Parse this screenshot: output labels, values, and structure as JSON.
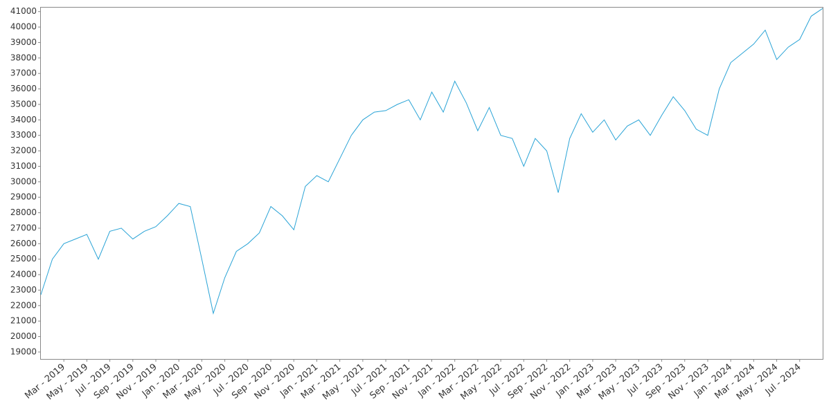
{
  "chart_data": {
    "type": "line",
    "x": [
      "2019-01",
      "2019-02",
      "2019-03",
      "2019-04",
      "2019-05",
      "2019-06",
      "2019-07",
      "2019-08",
      "2019-09",
      "2019-10",
      "2019-11",
      "2019-12",
      "2020-01",
      "2020-02",
      "2020-03",
      "2020-04",
      "2020-05",
      "2020-06",
      "2020-07",
      "2020-08",
      "2020-09",
      "2020-10",
      "2020-11",
      "2020-12",
      "2021-01",
      "2021-02",
      "2021-03",
      "2021-04",
      "2021-05",
      "2021-06",
      "2021-07",
      "2021-08",
      "2021-09",
      "2021-10",
      "2021-11",
      "2021-12",
      "2022-01",
      "2022-02",
      "2022-03",
      "2022-04",
      "2022-05",
      "2022-06",
      "2022-07",
      "2022-08",
      "2022-09",
      "2022-10",
      "2022-11",
      "2022-12",
      "2023-01",
      "2023-02",
      "2023-03",
      "2023-04",
      "2023-05",
      "2023-06",
      "2023-07",
      "2023-08",
      "2023-09",
      "2023-10",
      "2023-11",
      "2023-12",
      "2024-01",
      "2024-02",
      "2024-03",
      "2024-04",
      "2024-05",
      "2024-06",
      "2024-07",
      "2024-08",
      "2024-09"
    ],
    "series": [
      {
        "color": "#29a3d6",
        "values": [
          22700,
          25000,
          26000,
          26300,
          26600,
          25000,
          26800,
          27000,
          26300,
          26800,
          27100,
          27800,
          28600,
          28400,
          25000,
          21500,
          23800,
          25500,
          26000,
          26700,
          28400,
          27800,
          26900,
          29700,
          30400,
          30000,
          31500,
          33000,
          34000,
          34500,
          34600,
          35000,
          35300,
          34000,
          35800,
          34500,
          36500,
          35100,
          33300,
          34800,
          33000,
          32800,
          31000,
          32800,
          32000,
          29300,
          32800,
          34400,
          33200,
          34000,
          32700,
          33600,
          34000,
          33000,
          34300,
          35500,
          34600,
          33400,
          33000,
          36000,
          37700,
          38300,
          38900,
          39800,
          37900,
          38700,
          39200,
          40700,
          41200
        ]
      }
    ],
    "xlim": [
      "2019-01",
      "2024-09"
    ],
    "xticks": [
      {
        "value": "2019-03",
        "label": "Mar - 2019"
      },
      {
        "value": "2019-05",
        "label": "May - 2019"
      },
      {
        "value": "2019-07",
        "label": "Jul - 2019"
      },
      {
        "value": "2019-09",
        "label": "Sep - 2019"
      },
      {
        "value": "2019-11",
        "label": "Nov - 2019"
      },
      {
        "value": "2020-01",
        "label": "Jan - 2020"
      },
      {
        "value": "2020-03",
        "label": "Mar - 2020"
      },
      {
        "value": "2020-05",
        "label": "May - 2020"
      },
      {
        "value": "2020-07",
        "label": "Jul - 2020"
      },
      {
        "value": "2020-09",
        "label": "Sep - 2020"
      },
      {
        "value": "2020-11",
        "label": "Nov - 2020"
      },
      {
        "value": "2021-01",
        "label": "Jan - 2021"
      },
      {
        "value": "2021-03",
        "label": "Mar - 2021"
      },
      {
        "value": "2021-05",
        "label": "May - 2021"
      },
      {
        "value": "2021-07",
        "label": "Jul - 2021"
      },
      {
        "value": "2021-09",
        "label": "Sep - 2021"
      },
      {
        "value": "2021-11",
        "label": "Nov - 2021"
      },
      {
        "value": "2022-01",
        "label": "Jan - 2022"
      },
      {
        "value": "2022-03",
        "label": "Mar - 2022"
      },
      {
        "value": "2022-05",
        "label": "May - 2022"
      },
      {
        "value": "2022-07",
        "label": "Jul - 2022"
      },
      {
        "value": "2022-09",
        "label": "Sep - 2022"
      },
      {
        "value": "2022-11",
        "label": "Nov - 2022"
      },
      {
        "value": "2023-01",
        "label": "Jan - 2023"
      },
      {
        "value": "2023-03",
        "label": "Mar - 2023"
      },
      {
        "value": "2023-05",
        "label": "May - 2023"
      },
      {
        "value": "2023-07",
        "label": "Jul - 2023"
      },
      {
        "value": "2023-09",
        "label": "Sep - 2023"
      },
      {
        "value": "2023-11",
        "label": "Nov - 2023"
      },
      {
        "value": "2024-01",
        "label": "Jan - 2024"
      },
      {
        "value": "2024-03",
        "label": "Mar - 2024"
      },
      {
        "value": "2024-05",
        "label": "May - 2024"
      },
      {
        "value": "2024-07",
        "label": "Jul - 2024"
      }
    ],
    "ylim": [
      18550,
      41300
    ],
    "yticks": [
      19000,
      20000,
      21000,
      22000,
      23000,
      24000,
      25000,
      26000,
      27000,
      28000,
      29000,
      30000,
      31000,
      32000,
      33000,
      34000,
      35000,
      36000,
      37000,
      38000,
      39000,
      40000,
      41000
    ],
    "grid": false
  }
}
